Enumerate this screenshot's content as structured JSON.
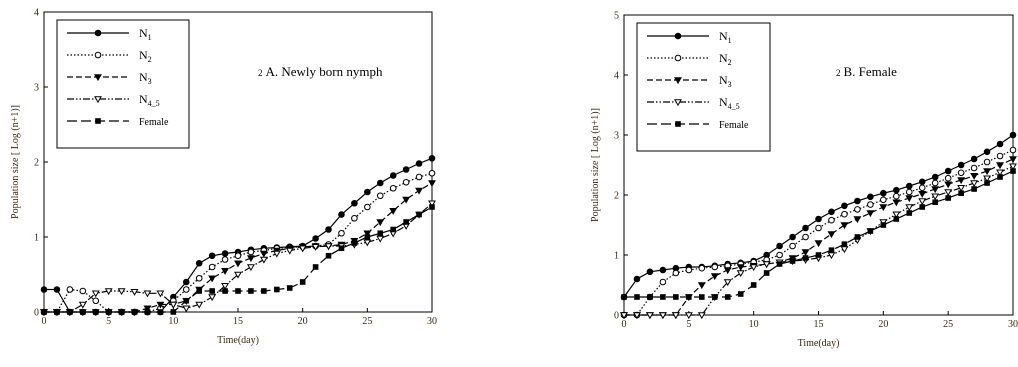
{
  "chart_data": [
    {
      "type": "line",
      "annotation_num": "2",
      "annotation_text": "A. Newly born nymph",
      "xlabel": "Time(day)",
      "ylabel": "Population size [ Log (n+1)]",
      "xlim": [
        0,
        30
      ],
      "ylim": [
        0,
        4
      ],
      "xticks": [
        0,
        5,
        10,
        15,
        20,
        25,
        30
      ],
      "yticks": [
        0,
        1,
        2,
        3,
        4
      ],
      "legend_position": "top-left",
      "series": [
        {
          "name": "N",
          "sub": "1",
          "marker": "filled-circle",
          "dash": "solid",
          "x": [
            0,
            1,
            2,
            3,
            4,
            5,
            6,
            7,
            8,
            9,
            10,
            11,
            12,
            13,
            14,
            15,
            16,
            17,
            18,
            19,
            20,
            21,
            22,
            23,
            24,
            25,
            26,
            27,
            28,
            29,
            30
          ],
          "y": [
            0.3,
            0.3,
            0,
            0,
            0,
            0,
            0,
            0,
            0,
            0,
            0.2,
            0.4,
            0.65,
            0.75,
            0.78,
            0.8,
            0.83,
            0.85,
            0.86,
            0.87,
            0.88,
            0.98,
            1.1,
            1.3,
            1.45,
            1.6,
            1.72,
            1.82,
            1.9,
            1.98,
            2.05
          ]
        },
        {
          "name": "N",
          "sub": "2",
          "marker": "open-circle",
          "dash": "dotted",
          "x": [
            0,
            1,
            2,
            3,
            4,
            5,
            6,
            7,
            8,
            9,
            10,
            11,
            12,
            13,
            14,
            15,
            16,
            17,
            18,
            19,
            20,
            21,
            22,
            23,
            24,
            25,
            26,
            27,
            28,
            29,
            30
          ],
          "y": [
            0,
            0,
            0.3,
            0.28,
            0.15,
            0,
            0,
            0,
            0,
            0.05,
            0.15,
            0.3,
            0.45,
            0.6,
            0.7,
            0.75,
            0.8,
            0.82,
            0.85,
            0.86,
            0.87,
            0.88,
            0.9,
            1.05,
            1.25,
            1.4,
            1.55,
            1.65,
            1.73,
            1.8,
            1.85
          ]
        },
        {
          "name": "N",
          "sub": "3",
          "marker": "filled-triangle-down",
          "dash": "dashed",
          "x": [
            0,
            1,
            2,
            3,
            4,
            5,
            6,
            7,
            8,
            9,
            10,
            11,
            12,
            13,
            14,
            15,
            16,
            17,
            18,
            19,
            20,
            21,
            22,
            23,
            24,
            25,
            26,
            27,
            28,
            29,
            30
          ],
          "y": [
            0,
            0,
            0,
            0,
            0,
            0,
            0,
            0,
            0.05,
            0.1,
            0.1,
            0.15,
            0.3,
            0.45,
            0.55,
            0.65,
            0.72,
            0.78,
            0.82,
            0.85,
            0.87,
            0.88,
            0.88,
            0.9,
            0.95,
            1.05,
            1.2,
            1.35,
            1.5,
            1.62,
            1.72
          ]
        },
        {
          "name": "N",
          "sub": "4_5",
          "marker": "open-triangle-down",
          "dash": "dashdotdot",
          "x": [
            0,
            1,
            2,
            3,
            4,
            5,
            6,
            7,
            8,
            9,
            10,
            11,
            12,
            13,
            14,
            15,
            16,
            17,
            18,
            19,
            20,
            21,
            22,
            23,
            24,
            25,
            26,
            27,
            28,
            29,
            30
          ],
          "y": [
            0,
            0,
            0,
            0.1,
            0.25,
            0.28,
            0.28,
            0.27,
            0.25,
            0.25,
            0.1,
            0.05,
            0.1,
            0.2,
            0.35,
            0.5,
            0.6,
            0.7,
            0.78,
            0.82,
            0.85,
            0.87,
            0.88,
            0.88,
            0.9,
            0.93,
            0.98,
            1.05,
            1.15,
            1.3,
            1.45
          ]
        },
        {
          "name": "Female",
          "sub": "",
          "marker": "filled-square",
          "dash": "longdash",
          "x": [
            0,
            1,
            2,
            3,
            4,
            5,
            6,
            7,
            8,
            9,
            10,
            11,
            12,
            13,
            14,
            15,
            16,
            17,
            18,
            19,
            20,
            21,
            22,
            23,
            24,
            25,
            26,
            27,
            28,
            29,
            30
          ],
          "y": [
            0,
            0,
            0,
            0,
            0,
            0,
            0,
            0,
            0,
            0,
            0,
            0.15,
            0.28,
            0.28,
            0.28,
            0.28,
            0.28,
            0.28,
            0.3,
            0.32,
            0.4,
            0.6,
            0.75,
            0.85,
            0.92,
            1.0,
            1.05,
            1.1,
            1.2,
            1.3,
            1.4
          ]
        }
      ]
    },
    {
      "type": "line",
      "annotation_num": "2",
      "annotation_text": "B. Female",
      "xlabel": "Time(day)",
      "ylabel": "Population size [ Log (n+1)]",
      "xlim": [
        0,
        30
      ],
      "ylim": [
        0,
        5
      ],
      "xticks": [
        0,
        5,
        10,
        15,
        20,
        25,
        30
      ],
      "yticks": [
        0,
        1,
        2,
        3,
        4,
        5
      ],
      "legend_position": "top-left",
      "series": [
        {
          "name": "N",
          "sub": "1",
          "marker": "filled-circle",
          "dash": "solid",
          "x": [
            0,
            1,
            2,
            3,
            4,
            5,
            6,
            7,
            8,
            9,
            10,
            11,
            12,
            13,
            14,
            15,
            16,
            17,
            18,
            19,
            20,
            21,
            22,
            23,
            24,
            25,
            26,
            27,
            28,
            29,
            30
          ],
          "y": [
            0.3,
            0.6,
            0.72,
            0.75,
            0.78,
            0.8,
            0.8,
            0.82,
            0.85,
            0.87,
            0.9,
            1.0,
            1.15,
            1.3,
            1.45,
            1.6,
            1.72,
            1.82,
            1.9,
            1.97,
            2.03,
            2.08,
            2.15,
            2.22,
            2.3,
            2.4,
            2.5,
            2.6,
            2.72,
            2.85,
            3.0
          ]
        },
        {
          "name": "N",
          "sub": "2",
          "marker": "open-circle",
          "dash": "dotted",
          "x": [
            0,
            1,
            2,
            3,
            4,
            5,
            6,
            7,
            8,
            9,
            10,
            11,
            12,
            13,
            14,
            15,
            16,
            17,
            18,
            19,
            20,
            21,
            22,
            23,
            24,
            25,
            26,
            27,
            28,
            29,
            30
          ],
          "y": [
            0,
            0,
            0.3,
            0.55,
            0.7,
            0.75,
            0.78,
            0.8,
            0.82,
            0.85,
            0.88,
            0.92,
            1.0,
            1.15,
            1.3,
            1.45,
            1.58,
            1.68,
            1.76,
            1.84,
            1.92,
            1.98,
            2.05,
            2.12,
            2.2,
            2.28,
            2.37,
            2.45,
            2.55,
            2.65,
            2.75
          ]
        },
        {
          "name": "N",
          "sub": "3",
          "marker": "filled-triangle-down",
          "dash": "dashed",
          "x": [
            0,
            1,
            2,
            3,
            4,
            5,
            6,
            7,
            8,
            9,
            10,
            11,
            12,
            13,
            14,
            15,
            16,
            17,
            18,
            19,
            20,
            21,
            22,
            23,
            24,
            25,
            26,
            27,
            28,
            29,
            30
          ],
          "y": [
            0,
            0,
            0,
            0,
            0,
            0.3,
            0.5,
            0.65,
            0.75,
            0.8,
            0.82,
            0.85,
            0.88,
            0.95,
            1.05,
            1.2,
            1.35,
            1.5,
            1.6,
            1.7,
            1.8,
            1.88,
            1.95,
            2.02,
            2.1,
            2.18,
            2.25,
            2.32,
            2.4,
            2.5,
            2.6
          ]
        },
        {
          "name": "N",
          "sub": "4_5",
          "marker": "open-triangle-down",
          "dash": "dashdotdot",
          "x": [
            0,
            1,
            2,
            3,
            4,
            5,
            6,
            7,
            8,
            9,
            10,
            11,
            12,
            13,
            14,
            15,
            16,
            17,
            18,
            19,
            20,
            21,
            22,
            23,
            24,
            25,
            26,
            27,
            28,
            29,
            30
          ],
          "y": [
            0,
            0,
            0,
            0,
            0,
            0,
            0,
            0.3,
            0.55,
            0.7,
            0.8,
            0.85,
            0.88,
            0.9,
            0.92,
            0.95,
            1.0,
            1.1,
            1.25,
            1.4,
            1.55,
            1.68,
            1.8,
            1.9,
            1.98,
            2.05,
            2.12,
            2.2,
            2.28,
            2.38,
            2.48
          ]
        },
        {
          "name": "Female",
          "sub": "",
          "marker": "filled-square",
          "dash": "longdash",
          "x": [
            0,
            1,
            2,
            3,
            4,
            5,
            6,
            7,
            8,
            9,
            10,
            11,
            12,
            13,
            14,
            15,
            16,
            17,
            18,
            19,
            20,
            21,
            22,
            23,
            24,
            25,
            26,
            27,
            28,
            29,
            30
          ],
          "y": [
            0.3,
            0.3,
            0.3,
            0.3,
            0.3,
            0.3,
            0.3,
            0.3,
            0.3,
            0.35,
            0.5,
            0.7,
            0.85,
            0.9,
            0.95,
            1.0,
            1.08,
            1.18,
            1.3,
            1.4,
            1.5,
            1.6,
            1.7,
            1.8,
            1.88,
            1.95,
            2.03,
            2.1,
            2.2,
            2.3,
            2.4
          ]
        }
      ]
    }
  ]
}
